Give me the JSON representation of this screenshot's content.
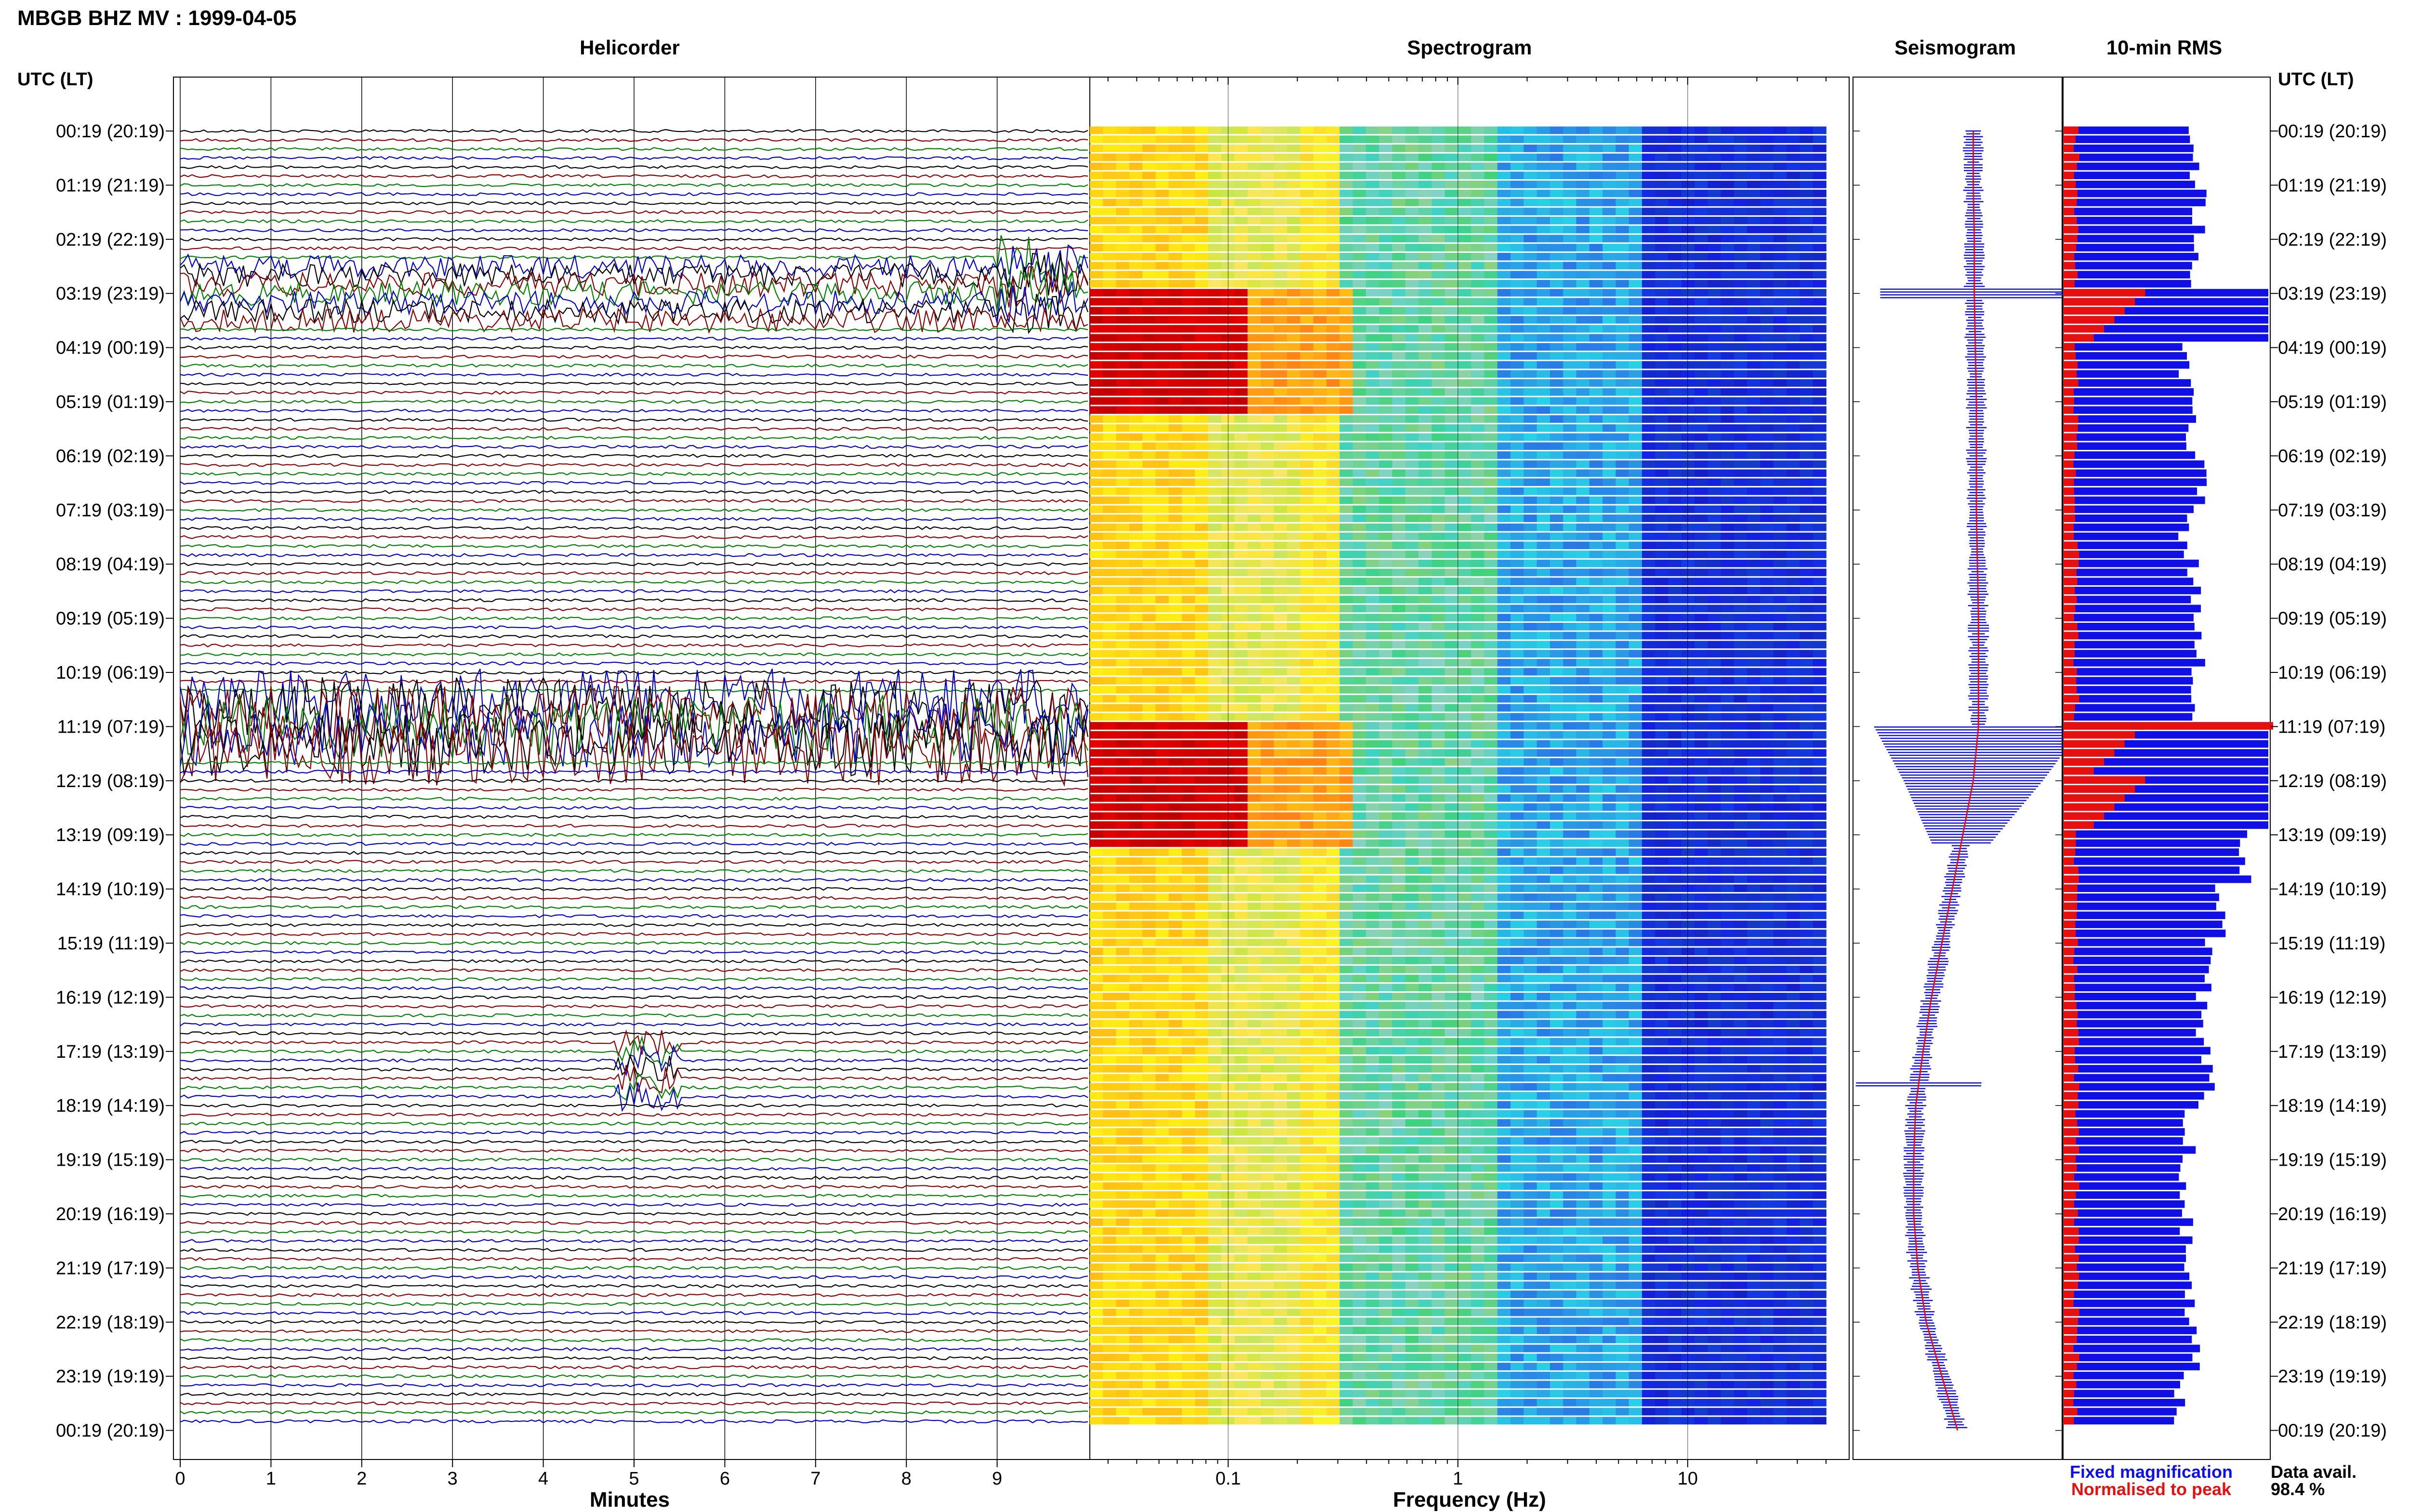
{
  "header": {
    "station_title": "MBGB BHZ MV : 1999-04-05",
    "left_time_header": "UTC (LT)",
    "right_time_header": "UTC (LT)"
  },
  "panels": {
    "helicorder_title": "Helicorder",
    "spectrogram_title": "Spectrogram",
    "seismogram_title": "Seismogram",
    "rms_title": "10-min RMS"
  },
  "footer": {
    "x_label_minutes": "Minutes",
    "x_label_frequency": "Frequency (Hz)",
    "legend_fixed": "Fixed magnification",
    "legend_normalised": "Normalised to peak",
    "data_avail_label": "Data avail.",
    "data_avail_value": "98.4 %"
  },
  "colors": {
    "fixed_blue": "#1010e6",
    "normalised_red": "#e61010",
    "trace_cycle": [
      "#000000",
      "#8b0000",
      "#008000",
      "#0000c8"
    ]
  },
  "chart_data": [
    {
      "type": "line",
      "name": "helicorder",
      "title": "Helicorder",
      "xlabel": "Minutes",
      "x_ticks": [
        "0",
        "1",
        "2",
        "3",
        "4",
        "5",
        "6",
        "7",
        "8",
        "9"
      ],
      "xlim": [
        0,
        10
      ],
      "y_tick_labels": [
        "00:19 (20:19)",
        "01:19 (21:19)",
        "02:19 (22:19)",
        "03:19 (23:19)",
        "04:19 (00:19)",
        "05:19 (01:19)",
        "06:19 (02:19)",
        "07:19 (03:19)",
        "08:19 (04:19)",
        "09:19 (05:19)",
        "10:19 (06:19)",
        "11:19 (07:19)",
        "12:19 (08:19)",
        "13:19 (09:19)",
        "14:19 (10:19)",
        "15:19 (11:19)",
        "16:19 (12:19)",
        "17:19 (13:19)",
        "18:19 (14:19)",
        "19:19 (15:19)",
        "20:19 (16:19)",
        "21:19 (17:19)",
        "22:19 (18:19)",
        "23:19 (19:19)",
        "00:19 (20:19)"
      ],
      "traces_per_hour": 6,
      "trace_count": 144,
      "events": [
        {
          "hour": 3.0,
          "minute_start": 0.0,
          "minute_end": 10.0,
          "amplitude": 1.2
        },
        {
          "hour": 2.8,
          "minute_start": 9.0,
          "minute_end": 9.9,
          "amplitude": 2.5
        },
        {
          "hour": 11.0,
          "minute_start": 0.0,
          "minute_end": 10.0,
          "amplitude": 3.5
        },
        {
          "hour": 17.3,
          "minute_start": 4.8,
          "minute_end": 5.5,
          "amplitude": 1.5
        }
      ]
    },
    {
      "type": "heatmap",
      "name": "spectrogram",
      "title": "Spectrogram",
      "xlabel": "Frequency (Hz)",
      "x_scale": "log",
      "xlim": [
        0.025,
        40
      ],
      "x_tick_labels": [
        "0.1",
        "1",
        "10"
      ],
      "bands_hz": [
        {
          "f_min": 0.025,
          "f_max": 0.08,
          "color": "orange-yellow"
        },
        {
          "f_min": 0.08,
          "f_max": 0.2,
          "color": "yellow-green"
        },
        {
          "f_min": 0.2,
          "f_max": 0.3,
          "color": "yellow-orange"
        },
        {
          "f_min": 0.3,
          "f_max": 1.5,
          "color": "green-cyan"
        },
        {
          "f_min": 1.5,
          "f_max": 6,
          "color": "cyan-blue"
        },
        {
          "f_min": 6,
          "f_max": 40,
          "color": "dark-blue"
        }
      ],
      "strong_events_hour": [
        3.0,
        11.0
      ]
    },
    {
      "type": "line",
      "name": "seismogram",
      "title": "Seismogram",
      "series": [
        {
          "name": "Fixed magnification",
          "color": "#1010e6"
        },
        {
          "name": "Normalised to peak",
          "color": "#e61010"
        }
      ],
      "envelope_hours": [
        0,
        1,
        2,
        3,
        4,
        5,
        6,
        7,
        8,
        9,
        10,
        11,
        12,
        13,
        14,
        15,
        16,
        17,
        18,
        19,
        20,
        21,
        22,
        23,
        24
      ],
      "envelope_offset": [
        0.15,
        0.15,
        0.16,
        0.16,
        0.17,
        0.18,
        0.18,
        0.18,
        0.19,
        0.2,
        0.2,
        0.2,
        0.15,
        0.05,
        -0.05,
        -0.15,
        -0.25,
        -0.33,
        -0.4,
        -0.42,
        -0.42,
        -0.38,
        -0.3,
        -0.15,
        0.0
      ]
    },
    {
      "type": "bar",
      "name": "10-min-rms",
      "title": "10-min RMS",
      "orientation": "horizontal",
      "series": [
        {
          "name": "Fixed magnification",
          "color": "#1010e6"
        },
        {
          "name": "Normalised to peak",
          "color": "#e61010"
        }
      ],
      "hourly_rms_fraction": [
        0.64,
        0.66,
        0.62,
        1.0,
        0.6,
        0.62,
        0.66,
        0.6,
        0.64,
        0.66,
        0.62,
        1.0,
        1.0,
        0.88,
        0.78,
        0.72,
        0.68,
        0.7,
        0.62,
        0.6,
        0.6,
        0.62,
        0.64,
        0.56
      ]
    }
  ]
}
